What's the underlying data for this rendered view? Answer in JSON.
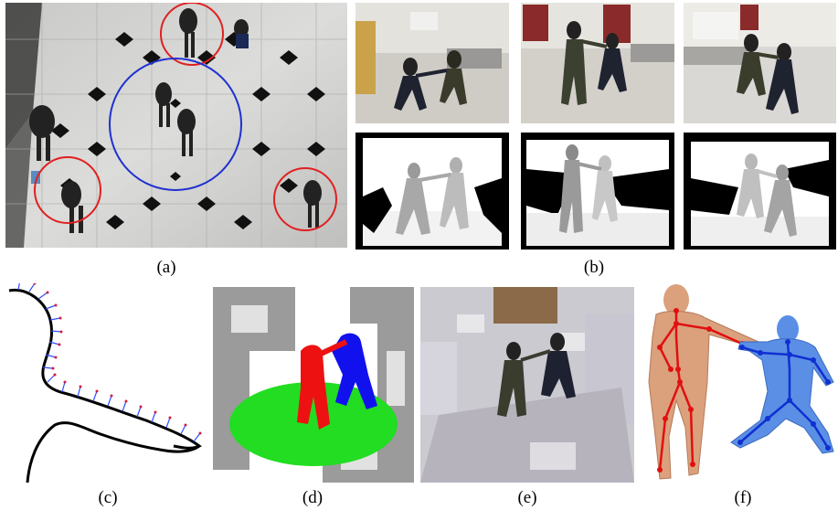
{
  "captions": {
    "a": "(a)",
    "b": "(b)",
    "c": "(c)",
    "d": "(d)",
    "e": "(e)",
    "f": "(f)"
  },
  "colors": {
    "marker_red": "#e02020",
    "marker_blue": "#2030d0",
    "normal_blue": "#3050ff",
    "normal_red": "#d02040",
    "cloud_green": "#22dd22",
    "cloud_red": "#ee1111",
    "cloud_blue": "#1111ee",
    "mesh_orange": "#dba07c",
    "mesh_blue": "#5b8fe6",
    "skeleton_red": "#e01010",
    "skeleton_blue": "#1030d0"
  },
  "panels": {
    "a": "overhead-camera-view",
    "b": "rgb-and-depth-frames",
    "c": "contour-with-normals",
    "d": "segmented-point-cloud",
    "e": "textured-point-cloud",
    "f": "fitted-body-meshes-with-skeletons"
  }
}
